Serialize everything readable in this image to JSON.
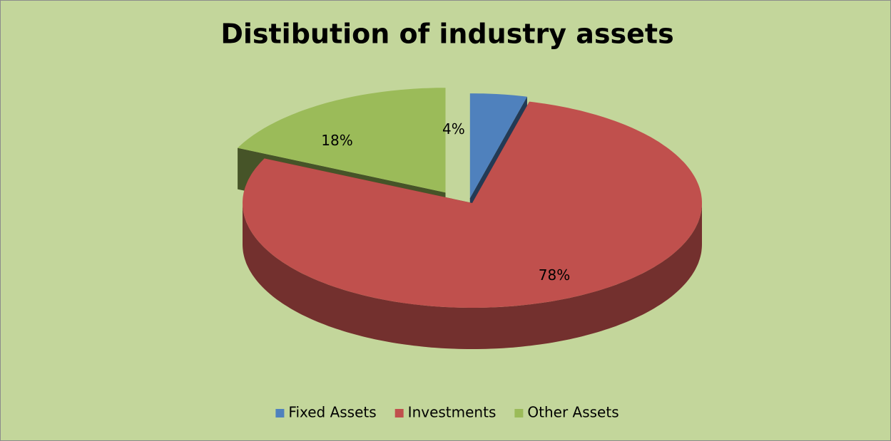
{
  "chart_data": {
    "type": "pie",
    "title": "Distibution of industry assets",
    "categories": [
      "Fixed Assets",
      "Investments",
      "Other Assets"
    ],
    "values": [
      4,
      78,
      18
    ],
    "value_labels": [
      "4%",
      "78%",
      "18%"
    ],
    "colors": [
      "#4f81bd",
      "#c0504d",
      "#9bbb59"
    ],
    "legend": "bottom"
  }
}
